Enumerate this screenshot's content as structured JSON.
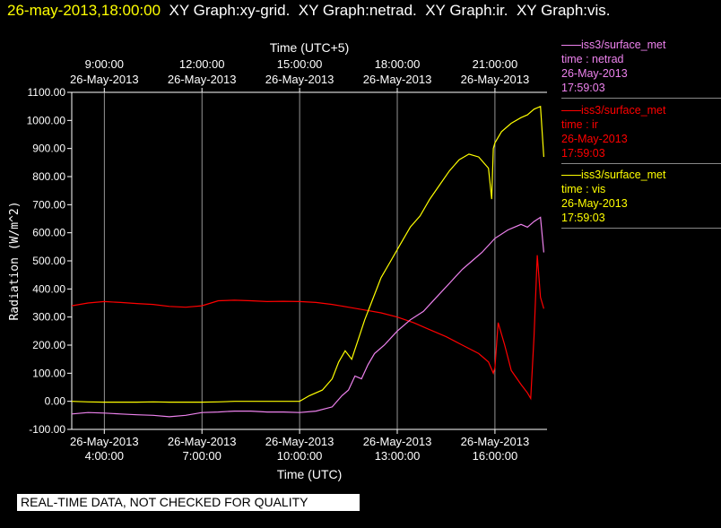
{
  "header": {
    "timestamp": "26-may-2013,18:00:00",
    "graphs": [
      "XY Graph:xy-grid.",
      "XY Graph:netrad.",
      "XY Graph:ir.",
      "XY Graph:vis."
    ]
  },
  "top_axis": {
    "title": "Time (UTC+5)",
    "ticks": [
      {
        "time": "9:00:00",
        "date": "26-May-2013"
      },
      {
        "time": "12:00:00",
        "date": "26-May-2013"
      },
      {
        "time": "15:00:00",
        "date": "26-May-2013"
      },
      {
        "time": "18:00:00",
        "date": "26-May-2013"
      },
      {
        "time": "21:00:00",
        "date": "26-May-2013"
      }
    ]
  },
  "legend": [
    {
      "source": "iss3/surface_met",
      "variable": "time : netrad",
      "date": "26-May-2013",
      "time": "17:59:03",
      "color": "#ee82ee"
    },
    {
      "source": "iss3/surface_met",
      "variable": "time : ir",
      "date": "26-May-2013",
      "time": "17:59:03",
      "color": "#ff0000"
    },
    {
      "source": "iss3/surface_met",
      "variable": "time : vis",
      "date": "26-May-2013",
      "time": "17:59:03",
      "color": "#ffff00"
    }
  ],
  "banner": "REAL-TIME DATA, NOT CHECKED FOR QUALITY",
  "chart_data": {
    "type": "line",
    "xlabel": "Time (UTC)",
    "ylabel": "Radiation (W/m^2)",
    "xlim": [
      3.0,
      17.6
    ],
    "ylim": [
      -100,
      1100
    ],
    "grid": "vertical",
    "xticks": [
      {
        "x": 4,
        "date": "26-May-2013",
        "time": "4:00:00"
      },
      {
        "x": 7,
        "date": "26-May-2013",
        "time": "7:00:00"
      },
      {
        "x": 10,
        "date": "26-May-2013",
        "time": "10:00:00"
      },
      {
        "x": 13,
        "date": "26-May-2013",
        "time": "13:00:00"
      },
      {
        "x": 16,
        "date": "26-May-2013",
        "time": "16:00:00"
      }
    ],
    "yticks": [
      "-100.00",
      "0.00",
      "100.00",
      "200.00",
      "300.00",
      "400.00",
      "500.00",
      "600.00",
      "700.00",
      "800.00",
      "900.00",
      "1000.00",
      "1100.00"
    ],
    "series": [
      {
        "name": "time : ir",
        "color": "#ff0000",
        "x": [
          3.0,
          3.5,
          4.0,
          4.5,
          5.0,
          5.5,
          6.0,
          6.5,
          7.0,
          7.5,
          8.0,
          8.5,
          9.0,
          9.5,
          10.0,
          10.5,
          11.0,
          11.5,
          12.0,
          12.5,
          13.0,
          13.5,
          14.0,
          14.5,
          15.0,
          15.5,
          15.8,
          15.95,
          16.0,
          16.1,
          16.3,
          16.5,
          16.8,
          17.0,
          17.1,
          17.2,
          17.3,
          17.4,
          17.5
        ],
        "y": [
          340,
          350,
          355,
          352,
          348,
          345,
          338,
          335,
          340,
          358,
          360,
          358,
          355,
          356,
          355,
          352,
          345,
          335,
          325,
          315,
          300,
          280,
          255,
          230,
          200,
          170,
          140,
          100,
          120,
          280,
          200,
          110,
          60,
          30,
          10,
          230,
          520,
          370,
          330
        ]
      },
      {
        "name": "time : netrad",
        "color": "#ee82ee",
        "x": [
          3.0,
          3.5,
          4.0,
          4.5,
          5.0,
          5.5,
          6.0,
          6.5,
          7.0,
          7.5,
          8.0,
          8.5,
          9.0,
          9.5,
          10.0,
          10.5,
          11.0,
          11.3,
          11.5,
          11.7,
          11.9,
          12.1,
          12.3,
          12.6,
          13.0,
          13.4,
          13.8,
          14.2,
          14.6,
          15.0,
          15.3,
          15.6,
          16.0,
          16.4,
          16.8,
          17.0,
          17.2,
          17.4,
          17.5
        ],
        "y": [
          -45,
          -40,
          -42,
          -45,
          -48,
          -50,
          -55,
          -50,
          -40,
          -38,
          -35,
          -35,
          -38,
          -38,
          -40,
          -35,
          -20,
          20,
          40,
          90,
          80,
          130,
          170,
          200,
          250,
          290,
          320,
          370,
          420,
          470,
          500,
          530,
          580,
          610,
          630,
          620,
          640,
          655,
          530
        ]
      },
      {
        "name": "time : vis",
        "color": "#ffff00",
        "x": [
          3.0,
          3.5,
          4.0,
          4.5,
          5.0,
          5.5,
          6.0,
          6.5,
          7.0,
          7.5,
          8.0,
          8.5,
          9.0,
          9.5,
          10.0,
          10.3,
          10.7,
          11.0,
          11.2,
          11.4,
          11.6,
          11.8,
          12.0,
          12.2,
          12.5,
          12.8,
          13.1,
          13.4,
          13.7,
          14.0,
          14.3,
          14.6,
          14.9,
          15.2,
          15.5,
          15.8,
          15.9,
          15.95,
          16.0,
          16.2,
          16.5,
          16.8,
          17.0,
          17.2,
          17.4,
          17.5
        ],
        "y": [
          0,
          -2,
          -3,
          -3,
          -3,
          -2,
          -3,
          -3,
          -3,
          -2,
          0,
          0,
          0,
          0,
          0,
          20,
          40,
          80,
          140,
          180,
          150,
          220,
          290,
          350,
          440,
          500,
          560,
          620,
          660,
          720,
          770,
          820,
          860,
          880,
          870,
          830,
          720,
          900,
          920,
          960,
          990,
          1010,
          1020,
          1040,
          1050,
          870
        ]
      }
    ]
  }
}
